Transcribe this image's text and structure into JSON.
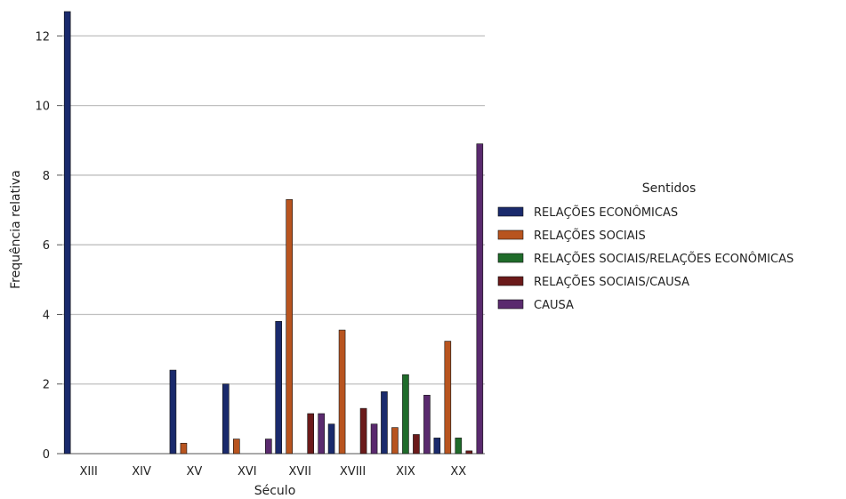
{
  "chart_data": {
    "type": "bar",
    "xlabel": "Século",
    "ylabel": "Frequência relativa",
    "ylim": [
      0,
      12.7
    ],
    "yticks": [
      0,
      2,
      4,
      6,
      8,
      10,
      12
    ],
    "grid": "horizontal",
    "legend_title": "Sentidos",
    "legend_position": "right",
    "categories": [
      "XIII",
      "XIV",
      "XV",
      "XVI",
      "XVII",
      "XVIII",
      "XIX",
      "XX"
    ],
    "series": [
      {
        "name": "RELAÇÕES ECONÔMICAS",
        "color": "#1a2a6c",
        "values": [
          12.7,
          0,
          2.4,
          2.0,
          3.8,
          0.85,
          1.78,
          0.45
        ]
      },
      {
        "name": "RELAÇÕES SOCIAIS",
        "color": "#b8541f",
        "values": [
          0,
          0,
          0.3,
          0.42,
          7.3,
          3.55,
          0.75,
          3.23
        ]
      },
      {
        "name": "RELAÇÕES SOCIAIS/RELAÇÕES ECONÔMICAS",
        "color": "#1f6b2a",
        "values": [
          0,
          0,
          0,
          0,
          0,
          0,
          2.27,
          0.45
        ]
      },
      {
        "name": "RELAÇÕES SOCIAIS/CAUSA",
        "color": "#6b1a1a",
        "values": [
          0,
          0,
          0,
          0,
          1.15,
          1.3,
          0.55,
          0.08
        ]
      },
      {
        "name": "CAUSA",
        "color": "#5a2a6e",
        "values": [
          0,
          0,
          0,
          0.42,
          1.15,
          0.85,
          1.68,
          8.9
        ]
      }
    ]
  }
}
